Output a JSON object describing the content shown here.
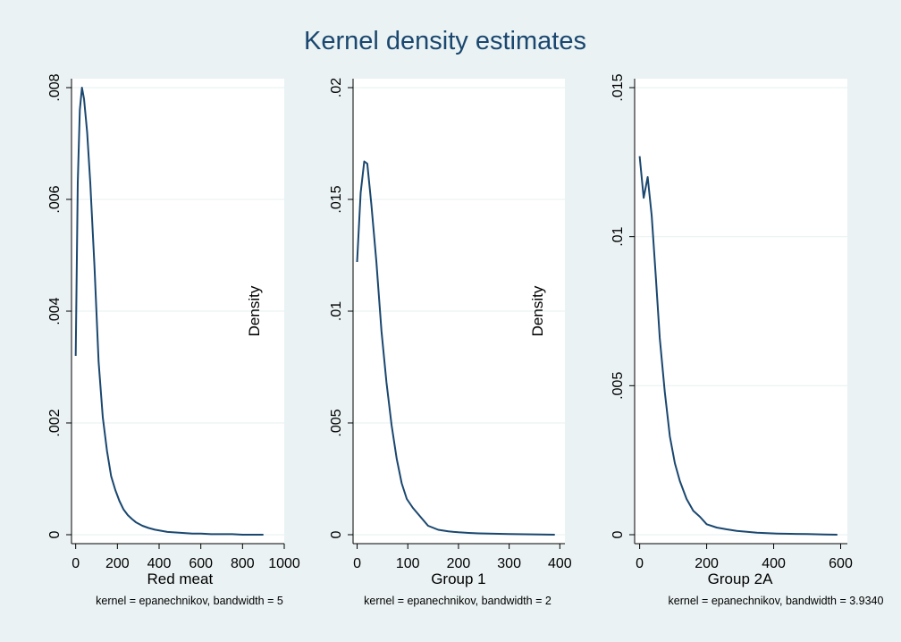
{
  "title": "Kernel density estimates",
  "colors": {
    "background": "#eaf2f3",
    "plot": "#ffffff",
    "line": "#1a476f",
    "grid": "#eaf2f3"
  },
  "chart_data": [
    {
      "type": "line",
      "xlabel": "Red meat",
      "ylabel": "",
      "note": "kernel = epanechnikov, bandwidth = 5",
      "xlim": [
        -20,
        1000
      ],
      "ylim": [
        0,
        0.008
      ],
      "xticks": [
        0,
        200,
        400,
        600,
        800,
        1000
      ],
      "xtick_labels": [
        "0",
        "200",
        "400",
        "600",
        "800",
        "1000"
      ],
      "yticks": [
        0,
        0.002,
        0.004,
        0.006,
        0.008
      ],
      "ytick_labels": [
        "0",
        ".002",
        ".004",
        ".006",
        ".008"
      ],
      "grid": true,
      "x": [
        0,
        10,
        20,
        30,
        40,
        55,
        70,
        90,
        110,
        130,
        150,
        170,
        190,
        210,
        230,
        250,
        270,
        290,
        320,
        350,
        380,
        410,
        440,
        480,
        520,
        560,
        600,
        650,
        700,
        750,
        800,
        850,
        900
      ],
      "y": [
        0.0032,
        0.0063,
        0.0076,
        0.008,
        0.0078,
        0.0072,
        0.0063,
        0.0048,
        0.0031,
        0.0021,
        0.0015,
        0.00105,
        0.0008,
        0.0006,
        0.00045,
        0.00035,
        0.00028,
        0.00022,
        0.00016,
        0.00012,
        9e-05,
        7e-05,
        5e-05,
        4e-05,
        3e-05,
        2e-05,
        2e-05,
        1e-05,
        1e-05,
        1e-05,
        0.0,
        0.0,
        0.0
      ]
    },
    {
      "type": "line",
      "xlabel": "Group 1",
      "ylabel": "Density",
      "note": "kernel = epanechnikov, bandwidth = 2",
      "xlim": [
        -8,
        410
      ],
      "ylim": [
        0,
        0.02
      ],
      "xticks": [
        0,
        100,
        200,
        300,
        400
      ],
      "xtick_labels": [
        "0",
        "100",
        "200",
        "300",
        "400"
      ],
      "yticks": [
        0,
        0.005,
        0.01,
        0.015,
        0.02
      ],
      "ytick_labels": [
        "0",
        ".005",
        ".01",
        ".015",
        ".02"
      ],
      "grid": true,
      "x": [
        0,
        7,
        14,
        20,
        28,
        38,
        48,
        58,
        68,
        78,
        88,
        98,
        110,
        125,
        140,
        160,
        180,
        200,
        220,
        240,
        260,
        280,
        300,
        330,
        360,
        390
      ],
      "y": [
        0.0122,
        0.0153,
        0.0167,
        0.0166,
        0.0148,
        0.0122,
        0.0091,
        0.0068,
        0.0049,
        0.0034,
        0.0023,
        0.0016,
        0.0012,
        0.0008,
        0.0004,
        0.00022,
        0.00015,
        0.00011,
        8e-05,
        6e-05,
        5e-05,
        4e-05,
        3e-05,
        2e-05,
        1e-05,
        0.0
      ]
    },
    {
      "type": "line",
      "xlabel": "Group 2A",
      "ylabel": "Density",
      "note": "kernel = epanechnikov, bandwidth = 3.9340",
      "xlim": [
        -15,
        620
      ],
      "ylim": [
        0,
        0.015
      ],
      "xticks": [
        0,
        200,
        400,
        600
      ],
      "xtick_labels": [
        "0",
        "200",
        "400",
        "600"
      ],
      "yticks": [
        0,
        0.005,
        0.01,
        0.015
      ],
      "ytick_labels": [
        "0",
        ".005",
        ".01",
        ".015"
      ],
      "grid": true,
      "x": [
        0,
        12,
        24,
        36,
        48,
        60,
        75,
        90,
        105,
        120,
        140,
        160,
        180,
        200,
        230,
        260,
        290,
        320,
        350,
        380,
        410,
        450,
        500,
        550,
        590
      ],
      "y": [
        0.0127,
        0.0113,
        0.012,
        0.0107,
        0.0087,
        0.0066,
        0.0048,
        0.0033,
        0.0024,
        0.0018,
        0.0012,
        0.0008,
        0.0006,
        0.00035,
        0.00024,
        0.00018,
        0.00013,
        0.0001,
        7e-05,
        5e-05,
        4e-05,
        3e-05,
        2e-05,
        1e-05,
        0.0
      ]
    }
  ]
}
